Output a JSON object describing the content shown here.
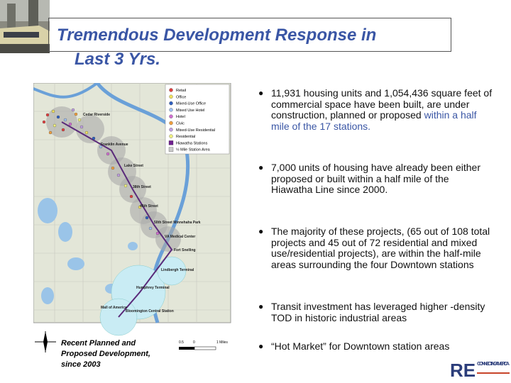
{
  "header": {
    "title": [
      "Tremendous Development Response in",
      "Last 3 Yrs."
    ]
  },
  "map": {
    "legend": [
      "Retail",
      "Office",
      "Mixed-Use Office",
      "Mixed Use Hotel",
      "Hotel",
      "Civic",
      "Mixed-Use Residential",
      "Residential",
      "Hiawatha Stations",
      "½ Mile Station Area"
    ],
    "labels": [
      "Cedar Riverside",
      "Franklin Avenue",
      "Lake Street",
      "38th Street",
      "46th Street",
      "50th Street Minnehaha Park",
      "VA Medical Center",
      "Fort Snelling",
      "Lindbergh Terminal",
      "Humphrey Terminal",
      "Mall of America",
      "Bloomington Central Station"
    ],
    "scale": [
      "0.5",
      "0",
      "1 Miles"
    ],
    "caption": "Recent Planned and Proposed Development, since 2003"
  },
  "bullets": [
    {
      "text": "11,931 housing units and 1,054,436 square feet of commercial space have been built, are under construction, planned or proposed ",
      "highlight": "within a half mile of the 17 stations."
    },
    {
      "text": "7,000 units of housing have already been either proposed or built within a half mile of the Hiawatha Line since 2000."
    },
    {
      "text": "The majority of these projects, (65 out of 108 total projects and 45 out of 72 residential and mixed use/residential projects), are within the half-mile areas surrounding the four Downtown stations"
    },
    {
      "text": "Transit investment has leveraged higher -density TOD in historic industrial areas"
    },
    {
      "text": "“Hot Market” for Downtown station areas"
    }
  ],
  "logo": {
    "mark": "RE",
    "name": "CONNECTING AMERICA"
  }
}
